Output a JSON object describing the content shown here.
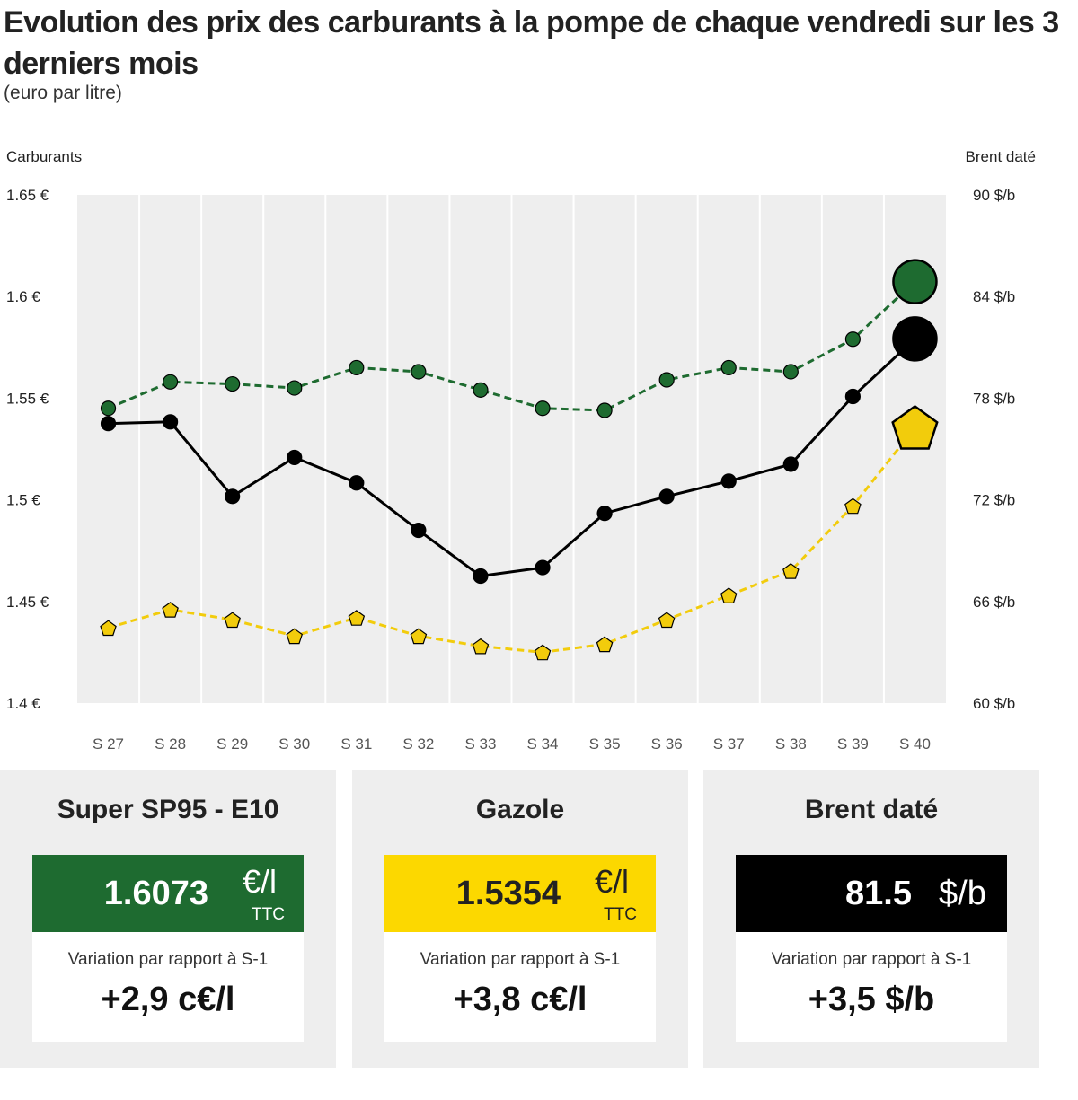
{
  "header": {
    "title": "Evolution des prix des carburants à la pompe de chaque vendredi sur les 3 derniers mois",
    "subtitle": "(euro par litre)"
  },
  "colors": {
    "sp95": "#1e6b30",
    "gazole": "#f2cc0c",
    "brent": "#000000",
    "plot_bg": "#eeeeee"
  },
  "chart_data": {
    "type": "line",
    "title": "Evolution des prix des carburants à la pompe de chaque vendredi sur les 3 derniers mois",
    "left_axis_title": "Carburants",
    "right_axis_title": "Brent daté",
    "categories": [
      "S 27",
      "S 28",
      "S 29",
      "S 30",
      "S 31",
      "S 32",
      "S 33",
      "S 34",
      "S 35",
      "S 36",
      "S 37",
      "S 38",
      "S 39",
      "S 40"
    ],
    "left_ylim": [
      1.4,
      1.65
    ],
    "left_ticks": [
      1.65,
      1.6,
      1.55,
      1.5,
      1.45,
      1.4
    ],
    "left_tick_labels": [
      "1.65 €",
      "1.6 €",
      "1.55 €",
      "1.5 €",
      "1.45 €",
      "1.4 €"
    ],
    "right_ylim": [
      60,
      90
    ],
    "right_ticks": [
      90,
      84,
      78,
      72,
      66,
      60
    ],
    "right_tick_labels": [
      "90 $/b",
      "84 $/b",
      "78 $/b",
      "72 $/b",
      "66 $/b",
      "60 $/b"
    ],
    "grid": "vertical",
    "series": [
      {
        "name": "Super SP95 - E10",
        "axis": "left",
        "style": "dashed",
        "marker": "circle",
        "color": "#1e6b30",
        "values": [
          1.545,
          1.558,
          1.557,
          1.555,
          1.565,
          1.563,
          1.554,
          1.545,
          1.544,
          1.559,
          1.565,
          1.563,
          1.579,
          1.6073
        ]
      },
      {
        "name": "Gazole",
        "axis": "left",
        "style": "dashed",
        "marker": "pentagon",
        "color": "#f2cc0c",
        "values": [
          1.437,
          1.446,
          1.441,
          1.433,
          1.442,
          1.433,
          1.428,
          1.425,
          1.429,
          1.441,
          1.453,
          1.465,
          1.497,
          1.5354
        ]
      },
      {
        "name": "Brent daté",
        "axis": "right",
        "style": "solid",
        "marker": "circle",
        "color": "#000000",
        "values": [
          76.5,
          76.6,
          72.2,
          74.5,
          73.0,
          70.2,
          67.5,
          68.0,
          71.2,
          72.2,
          73.1,
          74.1,
          78.1,
          81.5
        ]
      }
    ]
  },
  "cards": [
    {
      "title": "Super SP95 - E10",
      "value": "1.6073",
      "unit": "€/l",
      "unit_sub": "TTC",
      "variation_label": "Variation par rapport à S-1",
      "variation": "+2,9 c€/l"
    },
    {
      "title": "Gazole",
      "value": "1.5354",
      "unit": "€/l",
      "unit_sub": "TTC",
      "variation_label": "Variation par rapport à S-1",
      "variation": "+3,8 c€/l"
    },
    {
      "title": "Brent daté",
      "value": "81.5",
      "unit": "$/b",
      "variation_label": "Variation par rapport à S-1",
      "variation": "+3,5 $/b"
    }
  ]
}
